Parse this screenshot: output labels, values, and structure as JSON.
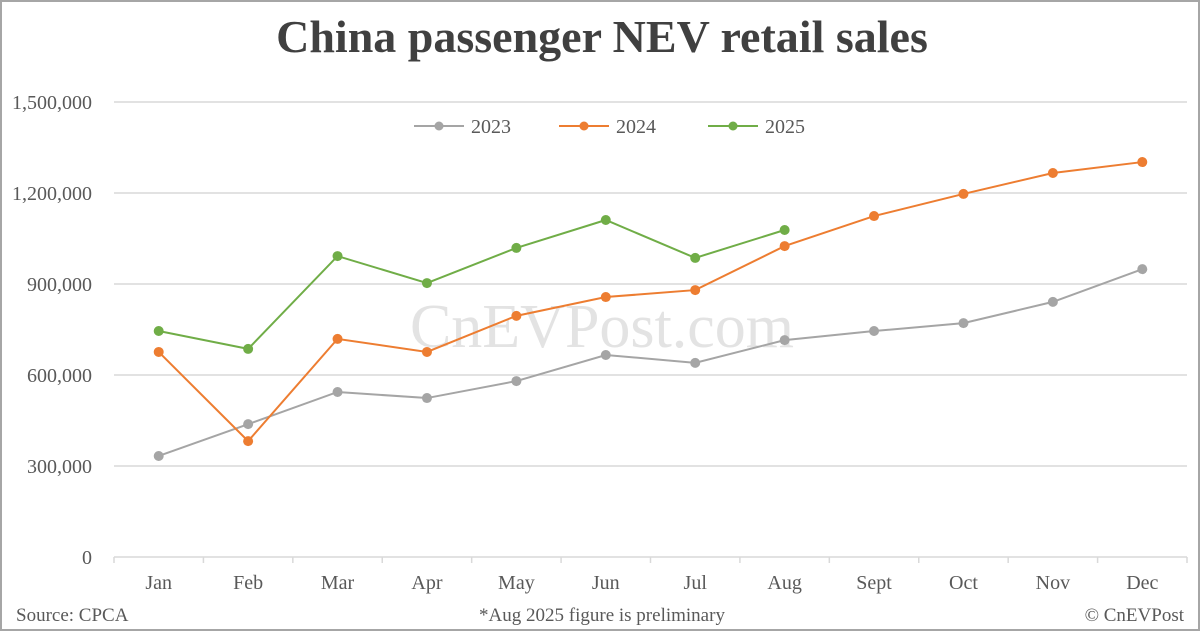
{
  "chart_data": {
    "type": "line",
    "title": "China passenger NEV retail sales",
    "xlabel": "",
    "ylabel": "",
    "categories": [
      "Jan",
      "Feb",
      "Mar",
      "Apr",
      "May",
      "Jun",
      "Jul",
      "Aug",
      "Sept",
      "Oct",
      "Nov",
      "Dec"
    ],
    "series": [
      {
        "name": "2023",
        "color": "#a5a5a5",
        "values": [
          333000,
          438000,
          544000,
          524000,
          580000,
          666000,
          640000,
          715000,
          745000,
          771000,
          841000,
          949000
        ]
      },
      {
        "name": "2024",
        "color": "#ed7d31",
        "values": [
          676000,
          382000,
          719000,
          676000,
          795000,
          857000,
          880000,
          1025000,
          1124000,
          1197000,
          1266000,
          1302000
        ]
      },
      {
        "name": "2025",
        "color": "#70ad47",
        "values": [
          745000,
          686000,
          992000,
          903000,
          1019000,
          1111000,
          986000,
          1078000,
          null,
          null,
          null,
          null
        ]
      }
    ],
    "ylim": [
      0,
      1500000
    ],
    "yticks": [
      0,
      300000,
      600000,
      900000,
      1200000,
      1500000
    ],
    "ytick_labels": [
      "0",
      "300,000",
      "600,000",
      "900,000",
      "1,200,000",
      "1,500,000"
    ],
    "grid": true,
    "legend_position": "top",
    "watermark": "CnEVPost.com"
  },
  "footer": {
    "source": "Source: CPCA",
    "note": "*Aug 2025 figure is preliminary",
    "copyright": "© CnEVPost"
  }
}
